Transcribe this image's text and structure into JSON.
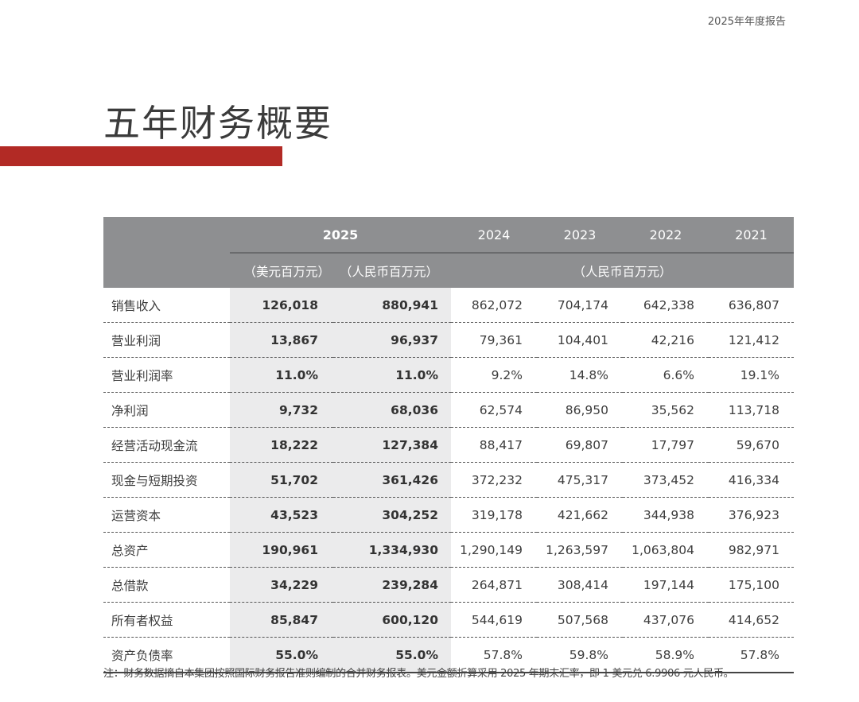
{
  "header": {
    "report_label": "2025年年度报告",
    "title": "五年财务概要",
    "accent_color": "#b22a25"
  },
  "table": {
    "header_bg": "#8e8f91",
    "highlight_bg": "#ebebec",
    "years": [
      "2025",
      "2024",
      "2023",
      "2022",
      "2021"
    ],
    "unit_usd": "（美元百万元）",
    "unit_rmb_2025": "（人民币百万元）",
    "unit_rmb_history": "（人民币百万元）",
    "rows": [
      {
        "label": "销售收入",
        "usd_2025": "126,018",
        "rmb_2025": "880,941",
        "y2024": "862,072",
        "y2023": "704,174",
        "y2022": "642,338",
        "y2021": "636,807"
      },
      {
        "label": "营业利润",
        "usd_2025": "13,867",
        "rmb_2025": "96,937",
        "y2024": "79,361",
        "y2023": "104,401",
        "y2022": "42,216",
        "y2021": "121,412"
      },
      {
        "label": "营业利润率",
        "usd_2025": "11.0%",
        "rmb_2025": "11.0%",
        "y2024": "9.2%",
        "y2023": "14.8%",
        "y2022": "6.6%",
        "y2021": "19.1%"
      },
      {
        "label": "净利润",
        "usd_2025": "9,732",
        "rmb_2025": "68,036",
        "y2024": "62,574",
        "y2023": "86,950",
        "y2022": "35,562",
        "y2021": "113,718"
      },
      {
        "label": "经营活动现金流",
        "usd_2025": "18,222",
        "rmb_2025": "127,384",
        "y2024": "88,417",
        "y2023": "69,807",
        "y2022": "17,797",
        "y2021": "59,670"
      },
      {
        "label": "现金与短期投资",
        "usd_2025": "51,702",
        "rmb_2025": "361,426",
        "y2024": "372,232",
        "y2023": "475,317",
        "y2022": "373,452",
        "y2021": "416,334"
      },
      {
        "label": "运营资本",
        "usd_2025": "43,523",
        "rmb_2025": "304,252",
        "y2024": "319,178",
        "y2023": "421,662",
        "y2022": "344,938",
        "y2021": "376,923"
      },
      {
        "label": "总资产",
        "usd_2025": "190,961",
        "rmb_2025": "1,334,930",
        "y2024": "1,290,149",
        "y2023": "1,263,597",
        "y2022": "1,063,804",
        "y2021": "982,971"
      },
      {
        "label": "总借款",
        "usd_2025": "34,229",
        "rmb_2025": "239,284",
        "y2024": "264,871",
        "y2023": "308,414",
        "y2022": "197,144",
        "y2021": "175,100"
      },
      {
        "label": "所有者权益",
        "usd_2025": "85,847",
        "rmb_2025": "600,120",
        "y2024": "544,619",
        "y2023": "507,568",
        "y2022": "437,076",
        "y2021": "414,652"
      },
      {
        "label": "资产负债率",
        "usd_2025": "55.0%",
        "rmb_2025": "55.0%",
        "y2024": "57.8%",
        "y2023": "59.8%",
        "y2022": "58.9%",
        "y2021": "57.8%"
      }
    ]
  },
  "footer": {
    "note": "注：财务数据摘自本集团按照国际财务报告准则编制的合并财务报表。美元金额折算采用 2025 年期末汇率，即 1 美元兑 6.9906 元人民币。"
  }
}
